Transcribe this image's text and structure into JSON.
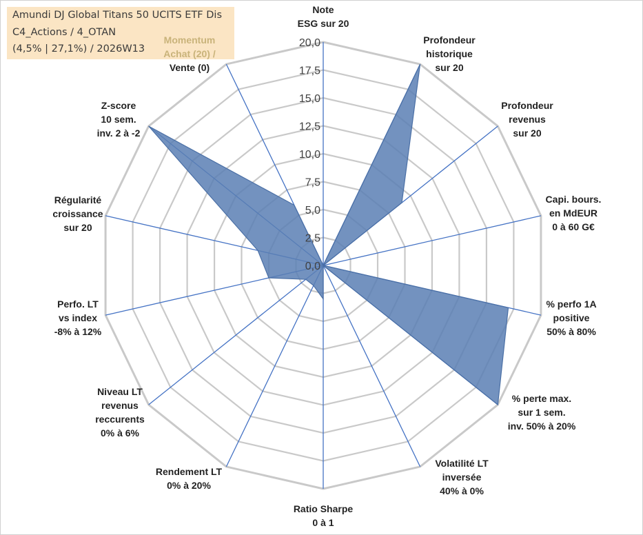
{
  "title": {
    "line1": "Amundi DJ Global Titans 50 UCITS ETF Dis",
    "line2": "C4_Actions / 4_OTAN",
    "line3": "(4,5% | 27,1%) / 2026W13"
  },
  "chart_data": {
    "type": "radar",
    "r_range": [
      0,
      20
    ],
    "ticks": [
      "0,0",
      "2,5",
      "5,0",
      "7,5",
      "10,0",
      "12,5",
      "15,0",
      "17,5",
      "20,0"
    ],
    "axes": [
      {
        "lines": [
          "Note",
          "ESG sur 20"
        ]
      },
      {
        "lines": [
          "Profondeur",
          "historique",
          "sur 20"
        ]
      },
      {
        "lines": [
          "Profondeur",
          "revenus",
          "sur 20"
        ]
      },
      {
        "lines": [
          "Capi. bours.",
          "en MdEUR",
          "0 à 60 G€"
        ]
      },
      {
        "lines": [
          "% perfo 1A",
          "positive",
          "50% à 80%"
        ]
      },
      {
        "lines": [
          "% perte max.",
          "sur 1 sem.",
          "inv. 50% à 20%"
        ]
      },
      {
        "lines": [
          "Volatilité LT",
          "inversée",
          "40% à 0%"
        ]
      },
      {
        "lines": [
          "Ratio Sharpe",
          "0 à 1"
        ]
      },
      {
        "lines": [
          "Rendement LT",
          "0% à 20%"
        ]
      },
      {
        "lines": [
          "Niveau LT",
          "revenus",
          "reccurents",
          "0% à 6%"
        ]
      },
      {
        "lines": [
          "Perfo. LT",
          "vs index",
          "-8% à 12%"
        ]
      },
      {
        "lines": [
          "Régularité",
          "croissance",
          "sur 20"
        ]
      },
      {
        "lines": [
          "Z-score",
          "10 sem.",
          "inv. 2 à -2"
        ]
      },
      {
        "lines": [
          "Momentum",
          "Achat (20) /",
          "Vente (0)"
        ]
      }
    ],
    "series": [
      {
        "name": "Amundi DJ Global Titans 50 UCITS ETF Dis",
        "values": [
          0,
          20,
          9,
          0,
          17,
          20,
          0,
          3,
          2,
          2,
          5,
          6,
          20,
          6
        ]
      }
    ],
    "colors": {
      "fill": "#5b7fb4",
      "stroke": "#4a6fa5",
      "grid": "#c9c9c9",
      "spoke": "#4472c4",
      "momentum_label": "#c9b37a"
    }
  }
}
